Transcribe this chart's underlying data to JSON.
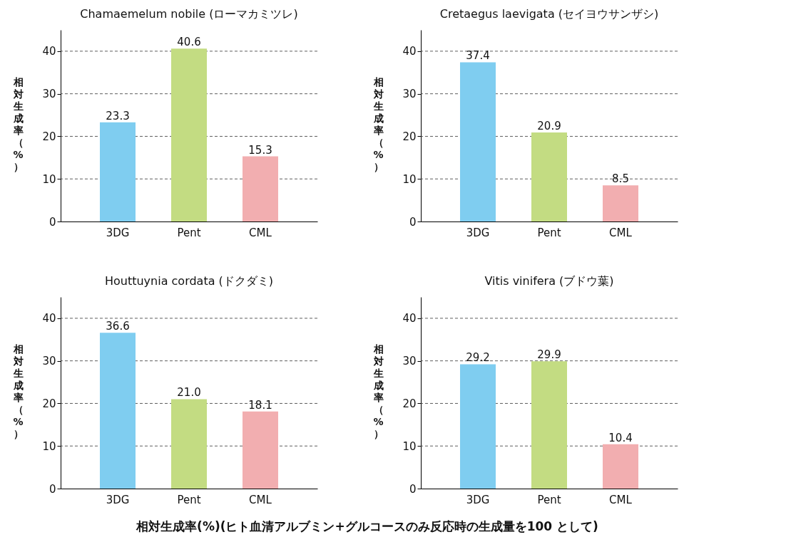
{
  "chart_data": [
    {
      "type": "bar",
      "title": "Chamaemelum nobile (ローマカミツレ)",
      "ylabel": "相対生成率（%）",
      "categories": [
        "3DG",
        "Pent",
        "CML"
      ],
      "values": [
        23.3,
        40.6,
        15.3
      ],
      "colors": [
        "#7fcdf0",
        "#c3dc82",
        "#f2aeb0"
      ],
      "ylim": [
        0,
        45
      ],
      "yticks": [
        0,
        10,
        20,
        30,
        40
      ],
      "grid": "y",
      "data_labels": true
    },
    {
      "type": "bar",
      "title": "Cretaegus laevigata (セイヨウサンザシ)",
      "ylabel": "相対生成率（%）",
      "categories": [
        "3DG",
        "Pent",
        "CML"
      ],
      "values": [
        37.4,
        20.9,
        8.5
      ],
      "colors": [
        "#7fcdf0",
        "#c3dc82",
        "#f2aeb0"
      ],
      "ylim": [
        0,
        45
      ],
      "yticks": [
        0,
        10,
        20,
        30,
        40
      ],
      "grid": "y",
      "data_labels": true
    },
    {
      "type": "bar",
      "title": "Houttuynia cordata (ドクダミ)",
      "ylabel": "相対生成率（%）",
      "categories": [
        "3DG",
        "Pent",
        "CML"
      ],
      "values": [
        36.6,
        21.0,
        18.1
      ],
      "value_labels": [
        "36.6",
        "21.0",
        "18.1"
      ],
      "colors": [
        "#7fcdf0",
        "#c3dc82",
        "#f2aeb0"
      ],
      "ylim": [
        0,
        45
      ],
      "yticks": [
        0,
        10,
        20,
        30,
        40
      ],
      "grid": "y"
    },
    {
      "type": "bar",
      "title": "Vitis vinifera (ブドウ葉)",
      "ylabel": "相対生成率（%）",
      "categories": [
        "3DG",
        "Pent",
        "CML"
      ],
      "values": [
        29.2,
        29.9,
        10.4
      ],
      "colors": [
        "#7fcdf0",
        "#c3dc82",
        "#f2aeb0"
      ],
      "ylim": [
        0,
        45
      ],
      "yticks": [
        0,
        10,
        20,
        30,
        40
      ],
      "grid": "y",
      "data_labels": true,
      "annotations": [
        "相対生成率(%)(ヒト血清アルブミン+グルコースのみ反応時の生成量を100 として)"
      ]
    }
  ]
}
